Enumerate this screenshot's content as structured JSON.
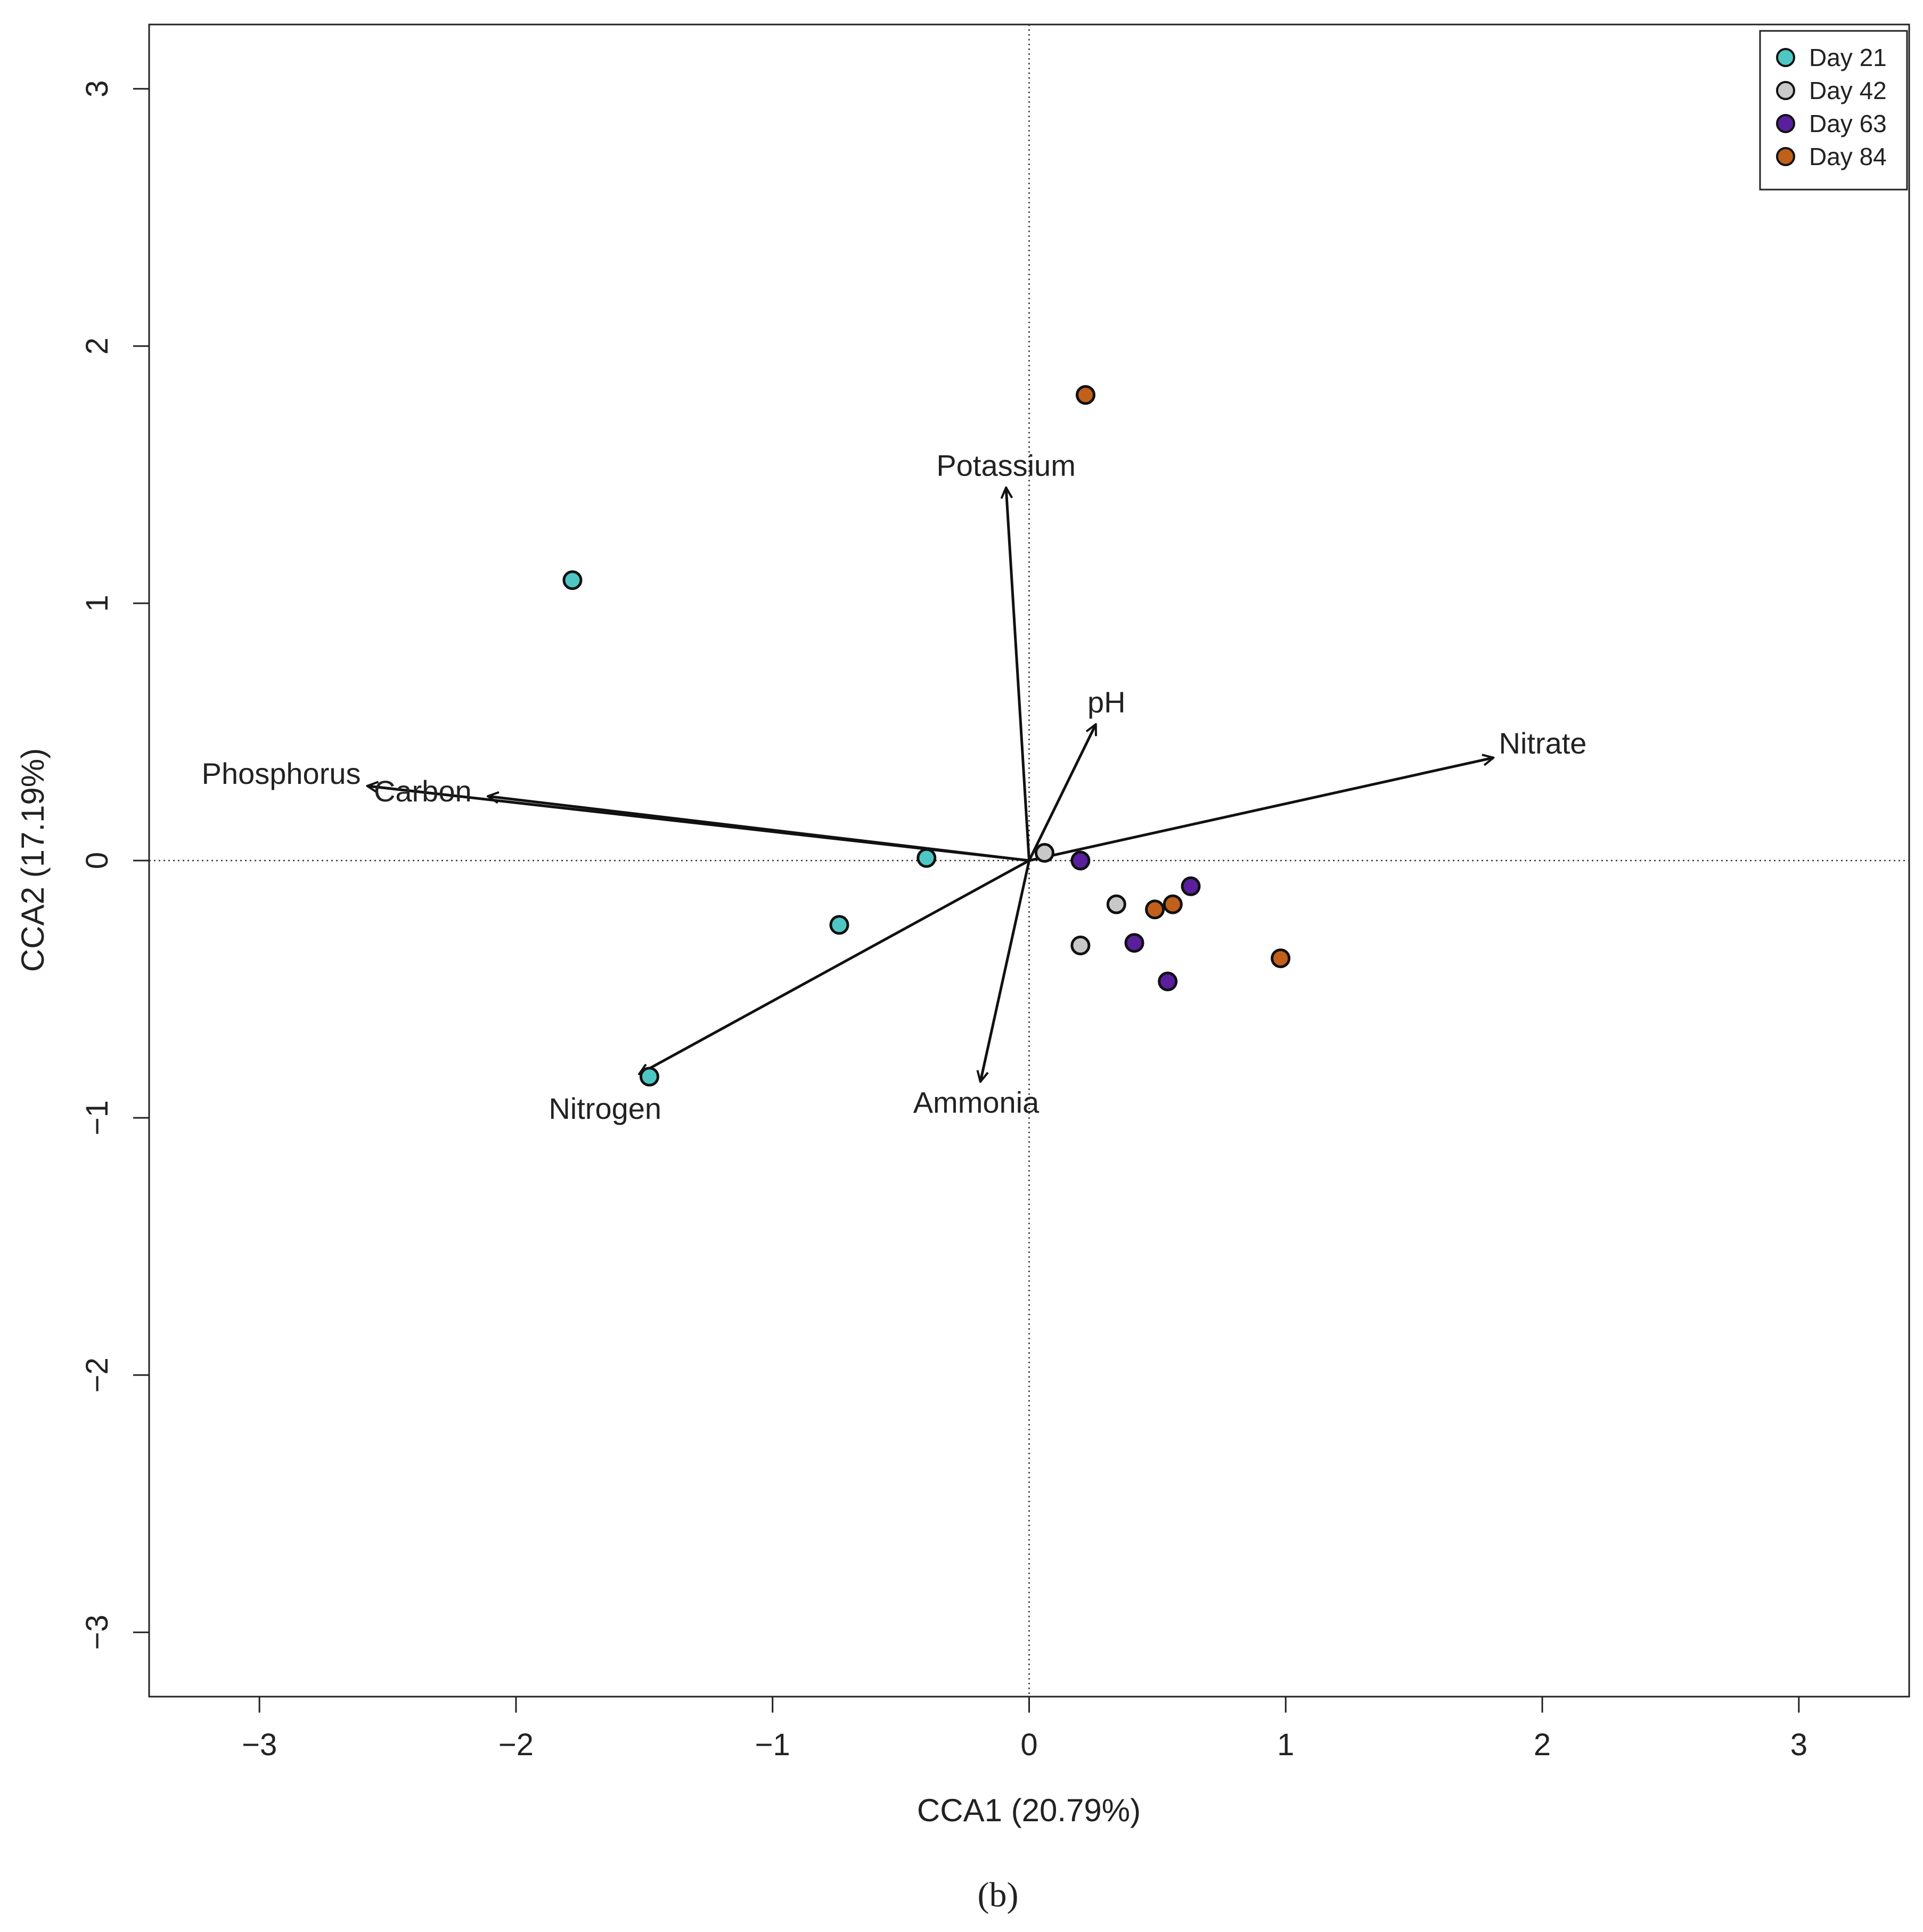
{
  "chart_data": {
    "type": "scatter",
    "subtype": "CCA biplot",
    "xlabel": "CCA1 (20.79%)",
    "ylabel": "CCA2 (17.19%)",
    "xlim": [
      -3.43,
      3.43
    ],
    "ylim": [
      -3.25,
      3.25
    ],
    "xticks": [
      -3,
      -2,
      -1,
      0,
      1,
      2,
      3
    ],
    "yticks": [
      -3,
      -2,
      -1,
      0,
      1,
      2,
      3
    ],
    "xtick_labels": [
      "−3",
      "−2",
      "−1",
      "0",
      "1",
      "2",
      "3"
    ],
    "ytick_labels": [
      "−3",
      "−2",
      "−1",
      "0",
      "1",
      "2",
      "3"
    ],
    "reference_lines": {
      "x": 0,
      "y": 0,
      "style": "dotted"
    },
    "legend": {
      "placement": "top-right"
    },
    "series": [
      {
        "name": "Day 21",
        "color": "#4ec7c4",
        "points": [
          [
            -1.78,
            1.09
          ],
          [
            -0.4,
            0.01
          ],
          [
            -0.74,
            -0.25
          ],
          [
            -1.48,
            -0.84
          ]
        ]
      },
      {
        "name": "Day 42",
        "color": "#c8c8c8",
        "points": [
          [
            0.06,
            0.03
          ],
          [
            0.34,
            -0.17
          ],
          [
            0.2,
            -0.33
          ]
        ]
      },
      {
        "name": "Day 63",
        "color": "#5a1f9c",
        "points": [
          [
            0.2,
            0.0
          ],
          [
            0.63,
            -0.1
          ],
          [
            0.41,
            -0.32
          ],
          [
            0.54,
            -0.47
          ]
        ]
      },
      {
        "name": "Day 84",
        "color": "#c0601a",
        "points": [
          [
            0.22,
            1.81
          ],
          [
            0.49,
            -0.19
          ],
          [
            0.56,
            -0.17
          ],
          [
            0.98,
            -0.38
          ]
        ]
      }
    ],
    "vectors": [
      {
        "name": "Potassium",
        "x": -0.09,
        "y": 1.45
      },
      {
        "name": "pH",
        "x": 0.26,
        "y": 0.53
      },
      {
        "name": "Nitrate",
        "x": 1.81,
        "y": 0.4
      },
      {
        "name": "Phosphorus",
        "x": -2.58,
        "y": 0.29
      },
      {
        "name": "Carbon",
        "x": -2.11,
        "y": 0.25
      },
      {
        "name": "Nitrogen",
        "x": -1.52,
        "y": -0.83
      },
      {
        "name": "Ammonia",
        "x": -0.19,
        "y": -0.86
      }
    ]
  },
  "caption": "(b)"
}
